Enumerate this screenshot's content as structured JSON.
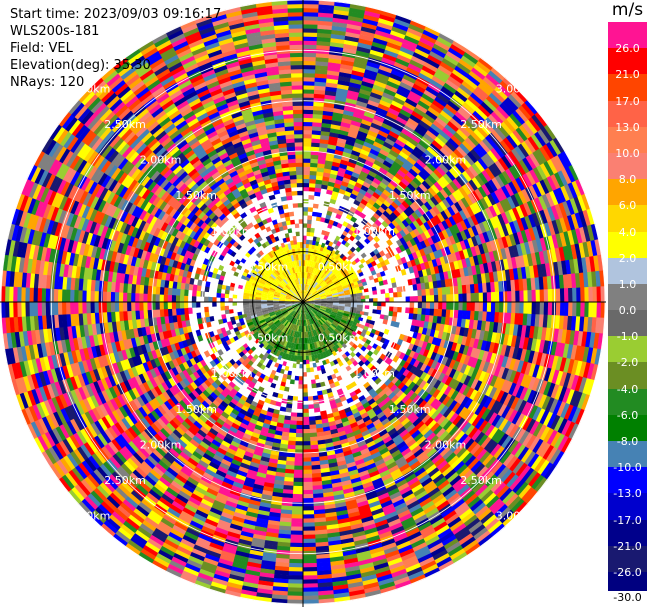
{
  "header": {
    "start_time": "Start time: 2023/09/03 09:16:17",
    "instrument": "WLS200s-181",
    "field": "Field: VEL",
    "elevation": "Elevation(deg): 35.30",
    "nrays": "NRays: 120"
  },
  "range_rings": [
    {
      "label": "0.50km",
      "km": 0.5
    },
    {
      "label": "1.00km",
      "km": 1.0
    },
    {
      "label": "1.50km",
      "km": 1.5
    },
    {
      "label": "2.00km",
      "km": 2.0
    },
    {
      "label": "2.50km",
      "km": 2.5
    },
    {
      "label": "3.00km",
      "km": 3.0
    }
  ],
  "colorbar": {
    "unit": "m/s",
    "levels": [
      {
        "label": "26.0",
        "color": "#ff1493"
      },
      {
        "label": "21.0",
        "color": "#ff0000"
      },
      {
        "label": "17.0",
        "color": "#ff4500"
      },
      {
        "label": "13.0",
        "color": "#ff6347"
      },
      {
        "label": "10.0",
        "color": "#ff7f50"
      },
      {
        "label": "8.0",
        "color": "#fa8072"
      },
      {
        "label": "6.0",
        "color": "#ffa500"
      },
      {
        "label": "4.0",
        "color": "#ffd700"
      },
      {
        "label": "2.0",
        "color": "#ffff00"
      },
      {
        "label": "1.0",
        "color": "#b0c4de"
      },
      {
        "label": "0.0",
        "color": "#808080"
      },
      {
        "label": "-1.0",
        "color": "#696969"
      },
      {
        "label": "-2.0",
        "color": "#9acd32"
      },
      {
        "label": "-4.0",
        "color": "#6b8e23"
      },
      {
        "label": "-6.0",
        "color": "#228b22"
      },
      {
        "label": "-8.0",
        "color": "#008000"
      },
      {
        "label": "-10.0",
        "color": "#4682b4"
      },
      {
        "label": "-13.0",
        "color": "#0000ff"
      },
      {
        "label": "-17.0",
        "color": "#0000cd"
      },
      {
        "label": "-21.0",
        "color": "#00008b"
      },
      {
        "label": "-26.0",
        "color": "#191970"
      },
      {
        "label": "-30.0",
        "color": "#000080"
      }
    ]
  }
}
